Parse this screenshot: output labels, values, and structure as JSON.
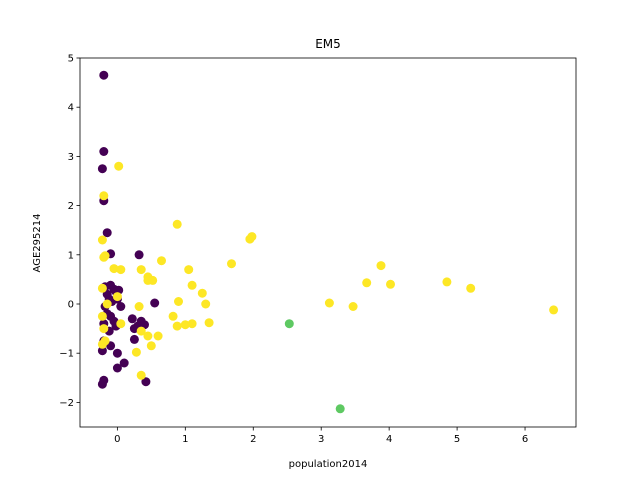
{
  "chart_data": {
    "type": "scatter",
    "title": "EM5",
    "xlabel": "population2014",
    "ylabel": "AGE295214",
    "xlim": [
      -0.55,
      6.75
    ],
    "ylim": [
      -2.5,
      5.0
    ],
    "x_ticks": [
      0,
      1,
      2,
      3,
      4,
      5,
      6
    ],
    "y_ticks": [
      -2,
      -1,
      0,
      1,
      2,
      3,
      4,
      5
    ],
    "grid": false,
    "legend": "none",
    "series": [
      {
        "color": "#440154",
        "points": [
          [
            -0.2,
            4.65
          ],
          [
            -0.2,
            3.1
          ],
          [
            -0.22,
            2.75
          ],
          [
            -0.2,
            2.1
          ],
          [
            -0.15,
            1.45
          ],
          [
            -0.1,
            1.02
          ],
          [
            -0.18,
            0.35
          ],
          [
            -0.1,
            0.38
          ],
          [
            -0.05,
            0.3
          ],
          [
            -0.02,
            0.25
          ],
          [
            0.02,
            0.28
          ],
          [
            -0.15,
            0.2
          ],
          [
            -0.12,
            0.1
          ],
          [
            -0.08,
            0.05
          ],
          [
            0.0,
            0.1
          ],
          [
            0.05,
            -0.05
          ],
          [
            -0.18,
            -0.05
          ],
          [
            -0.15,
            -0.2
          ],
          [
            -0.1,
            -0.25
          ],
          [
            -0.05,
            -0.35
          ],
          [
            -0.02,
            -0.45
          ],
          [
            -0.2,
            -0.4
          ],
          [
            -0.12,
            -0.55
          ],
          [
            -0.2,
            -0.75
          ],
          [
            -0.22,
            -0.95
          ],
          [
            -0.1,
            -0.85
          ],
          [
            0.0,
            -1.0
          ],
          [
            0.1,
            -1.2
          ],
          [
            0.0,
            -1.3
          ],
          [
            -0.2,
            -1.55
          ],
          [
            -0.22,
            -1.63
          ],
          [
            0.22,
            -0.3
          ],
          [
            0.25,
            -0.5
          ],
          [
            0.35,
            -0.35
          ],
          [
            0.3,
            -0.45
          ],
          [
            0.4,
            -0.42
          ],
          [
            0.25,
            -0.72
          ],
          [
            0.32,
            1.0
          ],
          [
            0.55,
            0.02
          ],
          [
            0.42,
            -1.58
          ]
        ]
      },
      {
        "color": "#fde725",
        "points": [
          [
            0.02,
            2.8
          ],
          [
            -0.2,
            2.2
          ],
          [
            -0.22,
            1.3
          ],
          [
            -0.18,
            0.98
          ],
          [
            -0.2,
            0.95
          ],
          [
            -0.05,
            0.72
          ],
          [
            0.05,
            0.7
          ],
          [
            -0.22,
            0.32
          ],
          [
            0.0,
            0.15
          ],
          [
            -0.15,
            0.0
          ],
          [
            0.05,
            -0.4
          ],
          [
            -0.22,
            -0.25
          ],
          [
            -0.2,
            -0.5
          ],
          [
            -0.22,
            -0.82
          ],
          [
            -0.18,
            -0.75
          ],
          [
            0.35,
            0.7
          ],
          [
            0.45,
            0.55
          ],
          [
            0.45,
            0.48
          ],
          [
            0.52,
            0.48
          ],
          [
            0.65,
            0.88
          ],
          [
            0.88,
            1.62
          ],
          [
            1.05,
            0.7
          ],
          [
            1.1,
            0.38
          ],
          [
            1.25,
            0.22
          ],
          [
            1.3,
            0.0
          ],
          [
            0.9,
            0.05
          ],
          [
            0.82,
            -0.25
          ],
          [
            0.88,
            -0.45
          ],
          [
            1.0,
            -0.42
          ],
          [
            1.1,
            -0.4
          ],
          [
            1.35,
            -0.38
          ],
          [
            0.32,
            -0.05
          ],
          [
            0.35,
            -0.55
          ],
          [
            0.45,
            -0.65
          ],
          [
            0.6,
            -0.65
          ],
          [
            0.5,
            -0.85
          ],
          [
            0.28,
            -0.98
          ],
          [
            0.35,
            -1.45
          ],
          [
            1.68,
            0.82
          ],
          [
            1.95,
            1.32
          ],
          [
            1.98,
            1.37
          ],
          [
            3.12,
            0.02
          ],
          [
            3.47,
            -0.05
          ],
          [
            3.67,
            0.43
          ],
          [
            3.88,
            0.78
          ],
          [
            4.02,
            0.4
          ],
          [
            4.85,
            0.45
          ],
          [
            5.2,
            0.32
          ],
          [
            6.42,
            -0.12
          ]
        ]
      },
      {
        "color": "#5ec962",
        "points": [
          [
            2.53,
            -0.4
          ],
          [
            3.28,
            -2.13
          ]
        ]
      }
    ]
  }
}
